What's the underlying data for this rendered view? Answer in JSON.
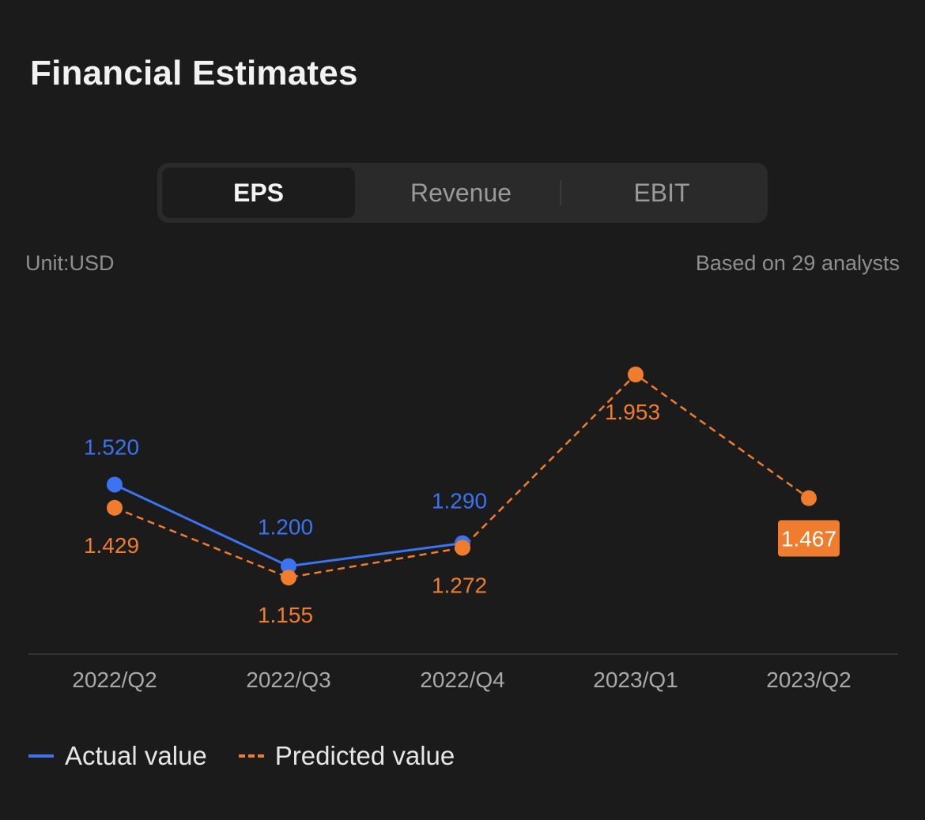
{
  "header": {
    "title": "Financial Estimates"
  },
  "tabs": [
    {
      "label": "EPS",
      "active": true
    },
    {
      "label": "Revenue",
      "active": false
    },
    {
      "label": "EBIT",
      "active": false
    }
  ],
  "meta": {
    "unit": "Unit:USD",
    "analysts": "Based on 29 analysts"
  },
  "colors": {
    "actual": "#3b73f0",
    "predicted": "#f07d2e",
    "background": "#1b1b1b"
  },
  "legend": {
    "actual_label": "Actual value",
    "predicted_label": "Predicted value"
  },
  "chart_data": {
    "type": "line",
    "categories": [
      "2022/Q2",
      "2022/Q3",
      "2022/Q4",
      "2023/Q1",
      "2023/Q2"
    ],
    "series": [
      {
        "name": "Actual value",
        "values": [
          1.52,
          1.2,
          1.29,
          null,
          null
        ],
        "labels": [
          "1.520",
          "1.200",
          "1.290",
          "",
          ""
        ],
        "style": "solid"
      },
      {
        "name": "Predicted value",
        "values": [
          1.429,
          1.155,
          1.272,
          1.953,
          1.467
        ],
        "labels": [
          "1.429",
          "1.155",
          "1.272",
          "1.953",
          "1.467"
        ],
        "style": "dashed"
      }
    ],
    "highlight": {
      "series": "Predicted value",
      "index": 4
    },
    "grid": false,
    "legend_position": "bottom-left"
  }
}
